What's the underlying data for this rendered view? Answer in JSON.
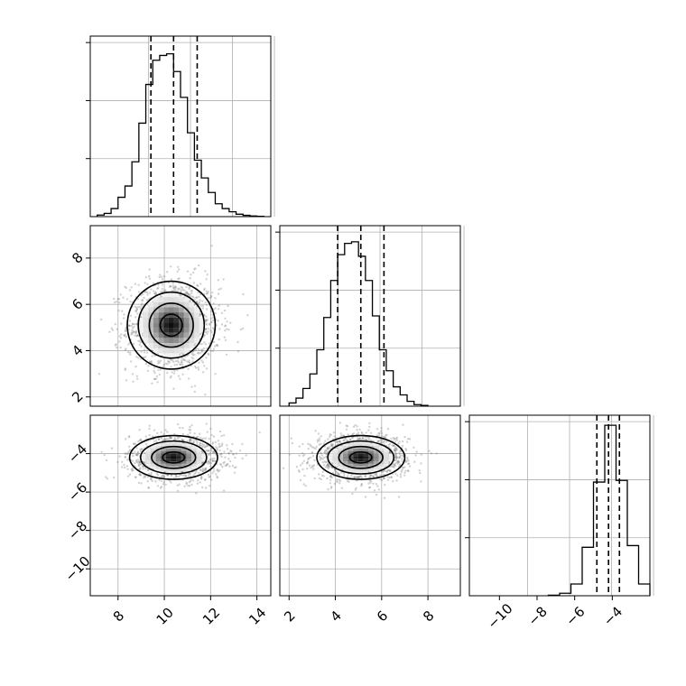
{
  "figure": {
    "colors": {
      "line": "#000000",
      "grid": "#b0b0b0",
      "points": "#7f7f7f",
      "density": "#000000",
      "background": "#ffffff"
    }
  },
  "chart_data": [
    {
      "type": "histogram",
      "panel": "marginal-p0",
      "xlim": [
        6.8,
        14.6
      ],
      "ylim": [
        0,
        1.12
      ],
      "grid": true,
      "bins": [
        7.1,
        7.4,
        7.7,
        8.0,
        8.3,
        8.6,
        8.9,
        9.2,
        9.5,
        9.8,
        10.1,
        10.4,
        10.7,
        11.0,
        11.3,
        11.6,
        11.9,
        12.2,
        12.5,
        12.8,
        13.1,
        13.4,
        13.7,
        14.0,
        14.3
      ],
      "counts": [
        0.01,
        0.02,
        0.05,
        0.12,
        0.19,
        0.34,
        0.58,
        0.82,
        0.97,
        1.0,
        1.01,
        0.9,
        0.74,
        0.52,
        0.35,
        0.24,
        0.15,
        0.08,
        0.05,
        0.03,
        0.015,
        0.008,
        0.004,
        0.002
      ],
      "quantile_lines": [
        9.42,
        10.4,
        11.42
      ],
      "yticks_shown": 3
    },
    {
      "type": "histogram",
      "panel": "marginal-p1",
      "xlim": [
        1.6,
        9.4
      ],
      "ylim": [
        0,
        1.12
      ],
      "grid": true,
      "bins": [
        2.0,
        2.3,
        2.6,
        2.9,
        3.2,
        3.5,
        3.8,
        4.1,
        4.4,
        4.7,
        5.0,
        5.3,
        5.6,
        5.9,
        6.2,
        6.5,
        6.8,
        7.1,
        7.4,
        7.7,
        8.0
      ],
      "counts": [
        0.02,
        0.05,
        0.11,
        0.2,
        0.35,
        0.55,
        0.78,
        0.94,
        1.01,
        1.02,
        0.93,
        0.78,
        0.56,
        0.35,
        0.22,
        0.12,
        0.07,
        0.03,
        0.01,
        0.005
      ],
      "quantile_lines": [
        4.1,
        5.1,
        6.1
      ],
      "yticks_shown": 3
    },
    {
      "type": "histogram",
      "panel": "marginal-p2",
      "xlim": [
        -11.6,
        -2.0
      ],
      "ylim": [
        0,
        1.08
      ],
      "grid": true,
      "bins": [
        -7.4,
        -6.8,
        -6.2,
        -5.6,
        -5.0,
        -4.4,
        -3.8,
        -3.2,
        -2.6,
        -2.0
      ],
      "counts": [
        0.003,
        0.015,
        0.07,
        0.29,
        0.68,
        1.02,
        0.69,
        0.3,
        0.07
      ],
      "quantile_lines": [
        -4.82,
        -4.2,
        -3.62
      ],
      "yticks_shown": 3
    },
    {
      "type": "scatter",
      "panel": "joint-p1-vs-p0",
      "xlim": [
        6.8,
        14.6
      ],
      "ylim": [
        1.6,
        9.4
      ],
      "grid": true,
      "center": [
        10.4,
        5.1
      ],
      "spread": [
        1.0,
        1.0
      ],
      "contour_radii": [
        0.5,
        1.0,
        1.5,
        2.0
      ],
      "density_peak": [
        10.3,
        5.1
      ],
      "yticks": [
        "2",
        "4",
        "6",
        "8"
      ],
      "ytick_values": [
        2,
        4,
        6,
        8
      ]
    },
    {
      "type": "scatter",
      "panel": "joint-p2-vs-p0",
      "xlim": [
        6.8,
        14.6
      ],
      "ylim": [
        -11.4,
        -2.0
      ],
      "grid": true,
      "center": [
        10.5,
        -4.2
      ],
      "spread": [
        1.0,
        0.6
      ],
      "contour_radii": [
        0.5,
        1.0,
        1.5,
        2.0
      ],
      "density_peak": [
        10.4,
        -4.2
      ],
      "xticks": [
        "8",
        "10",
        "12",
        "14"
      ],
      "xtick_values": [
        8,
        10,
        12,
        14
      ],
      "yticks": [
        "−4",
        "−6",
        "−8",
        "−10"
      ],
      "ytick_values": [
        -4,
        -6,
        -8,
        -10
      ]
    },
    {
      "type": "scatter",
      "panel": "joint-p2-vs-p1",
      "xlim": [
        1.6,
        9.4
      ],
      "ylim": [
        -11.4,
        -2.0
      ],
      "grid": true,
      "center": [
        5.1,
        -4.2
      ],
      "spread": [
        1.0,
        0.6
      ],
      "contour_radii": [
        0.5,
        1.0,
        1.5,
        2.0
      ],
      "density_peak": [
        5.1,
        -4.2
      ],
      "xticks": [
        "2",
        "4",
        "6",
        "8"
      ],
      "xtick_values": [
        2,
        4,
        6,
        8
      ]
    },
    {
      "type": "histogram-axis",
      "panel": "marginal-p2-axis",
      "xticks": [
        "−10",
        "−8",
        "−6",
        "−4"
      ],
      "xtick_values": [
        -10,
        -8,
        -6,
        -4
      ]
    }
  ]
}
